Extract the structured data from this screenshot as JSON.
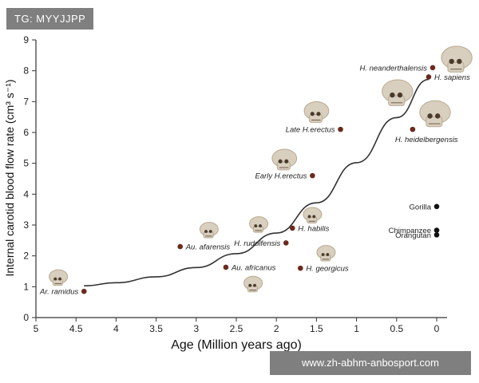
{
  "overlays": {
    "tag": "TG: MYYJJPP",
    "watermark": "www.zh-abhm-anbosport.com"
  },
  "colors": {
    "hominin_point": "#6b2a1c",
    "ape_point": "#111111",
    "axis": "#333333",
    "curve": "#333333",
    "skull": "#d9cfbf",
    "skull_shade": "#b8a990",
    "overlay_bg": "#7f7f7f"
  },
  "chart_data": {
    "type": "scatter",
    "xlabel": "Age  (Million years ago)",
    "ylabel": "Internal carotid blood flow rate  (cm³ s⁻¹)",
    "xlim": [
      5,
      0
    ],
    "ylim": [
      0,
      9
    ],
    "x_ticks": [
      "5",
      "4.5",
      "4",
      "3.5",
      "3",
      "2.5",
      "2",
      "1.5",
      "1",
      "0.5",
      "0"
    ],
    "y_ticks": [
      "0",
      "1",
      "2",
      "3",
      "4",
      "5",
      "6",
      "7",
      "8",
      "9"
    ],
    "grid": false,
    "series": [
      {
        "kind": "hominin",
        "points": [
          {
            "label": "Ar. ramidus",
            "x": 4.4,
            "y": 0.85,
            "label_side": "left"
          },
          {
            "label": "Au. afarensis",
            "x": 3.2,
            "y": 2.3,
            "label_side": "right"
          },
          {
            "label": "Au. africanus",
            "x": 2.63,
            "y": 1.63,
            "label_side": "right"
          },
          {
            "label": "H. rudolfensis",
            "x": 1.88,
            "y": 2.42,
            "label_side": "left"
          },
          {
            "label": "H. habilis",
            "x": 1.8,
            "y": 2.9,
            "label_side": "right"
          },
          {
            "label": "H. georgicus",
            "x": 1.7,
            "y": 1.6,
            "label_side": "right"
          },
          {
            "label": "Early H.erectus",
            "x": 1.55,
            "y": 4.6,
            "label_side": "left"
          },
          {
            "label": "Late H.erectus",
            "x": 1.2,
            "y": 6.1,
            "label_side": "left"
          },
          {
            "label": "H. heidelbergensis",
            "x": 0.3,
            "y": 6.1,
            "label_side": "below"
          },
          {
            "label": "H. neanderthalensis",
            "x": 0.05,
            "y": 8.1,
            "label_side": "left"
          },
          {
            "label": "H. sapiens",
            "x": 0.1,
            "y": 7.8,
            "label_side": "right"
          }
        ]
      },
      {
        "kind": "ape",
        "points": [
          {
            "label": "Gorilla",
            "x": 0.0,
            "y": 3.6,
            "label_side": "left"
          },
          {
            "label": "Chimpanzee",
            "x": 0.0,
            "y": 2.83,
            "label_side": "left"
          },
          {
            "label": "Orangutan",
            "x": 0.0,
            "y": 2.68,
            "label_side": "left"
          }
        ]
      }
    ],
    "trend": {
      "type": "exponential",
      "x": [
        4.4,
        4.0,
        3.5,
        3.0,
        2.5,
        2.0,
        1.5,
        1.0,
        0.5,
        0.1
      ],
      "y": [
        1.03,
        1.13,
        1.32,
        1.62,
        2.07,
        2.74,
        3.72,
        5.02,
        6.48,
        7.72
      ]
    },
    "skull_icons": [
      {
        "x": 4.72,
        "y": 1.28,
        "size": "small"
      },
      {
        "x": 2.84,
        "y": 2.82,
        "size": "small"
      },
      {
        "x": 2.22,
        "y": 3.0,
        "size": "small"
      },
      {
        "x": 2.29,
        "y": 1.07,
        "size": "small"
      },
      {
        "x": 1.55,
        "y": 3.3,
        "size": "small"
      },
      {
        "x": 1.38,
        "y": 2.07,
        "size": "small"
      },
      {
        "x": 1.9,
        "y": 5.1,
        "size": "medium"
      },
      {
        "x": 1.5,
        "y": 6.64,
        "size": "medium"
      },
      {
        "x": 0.49,
        "y": 7.26,
        "size": "large"
      },
      {
        "x": 0.02,
        "y": 6.58,
        "size": "large"
      },
      {
        "x": -0.25,
        "y": 8.35,
        "size": "large"
      }
    ]
  }
}
